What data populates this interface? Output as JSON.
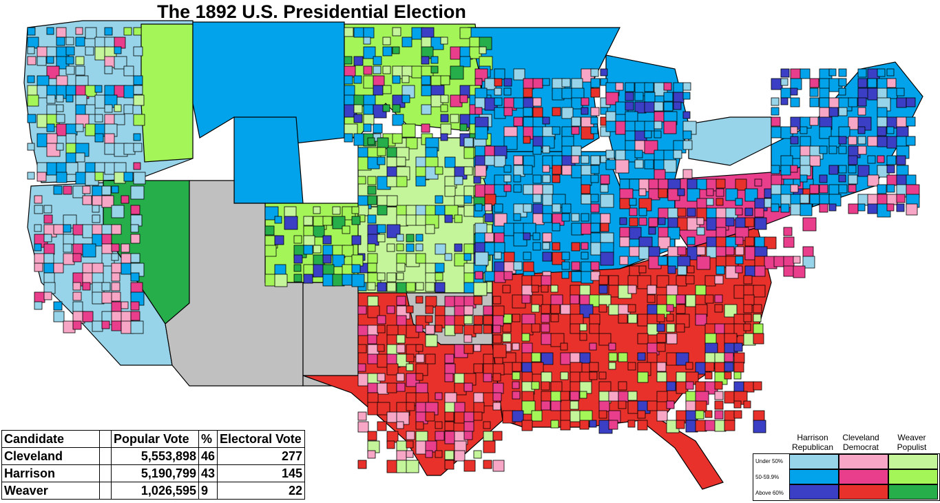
{
  "title": "The 1892 U.S. Presidential Election",
  "colors": {
    "rep_under50": "#97d4ea",
    "rep_50_60": "#02a3ea",
    "rep_above60": "#3a3fc6",
    "dem_under50": "#f8a6c6",
    "dem_50_60": "#e83e8c",
    "dem_above60": "#e8312a",
    "pop_under50": "#c4f59a",
    "pop_50_60": "#a4f557",
    "pop_above60": "#26ae4a",
    "no_data": "#c0c0c0"
  },
  "results": {
    "headers": {
      "candidate": "Candidate",
      "popular_vote": "Popular Vote",
      "percent": "%",
      "electoral_vote": "Electoral Vote"
    },
    "rows": [
      {
        "candidate": "Cleveland",
        "popular_vote": "5,553,898",
        "percent": "46",
        "electoral_vote": "277"
      },
      {
        "candidate": "Harrison",
        "popular_vote": "5,190,799",
        "percent": "43",
        "electoral_vote": "145"
      },
      {
        "candidate": "Weaver",
        "popular_vote": "1,026,595",
        "percent": "9",
        "electoral_vote": "22"
      }
    ]
  },
  "legend": {
    "columns": [
      {
        "line1": "Harrison",
        "line2": "Republican"
      },
      {
        "line1": "Cleveland",
        "line2": "Democrat"
      },
      {
        "line1": "Weaver",
        "line2": "Populist"
      }
    ],
    "rows": [
      "Under 50%",
      "50-59.9%",
      "Above 60%"
    ]
  }
}
